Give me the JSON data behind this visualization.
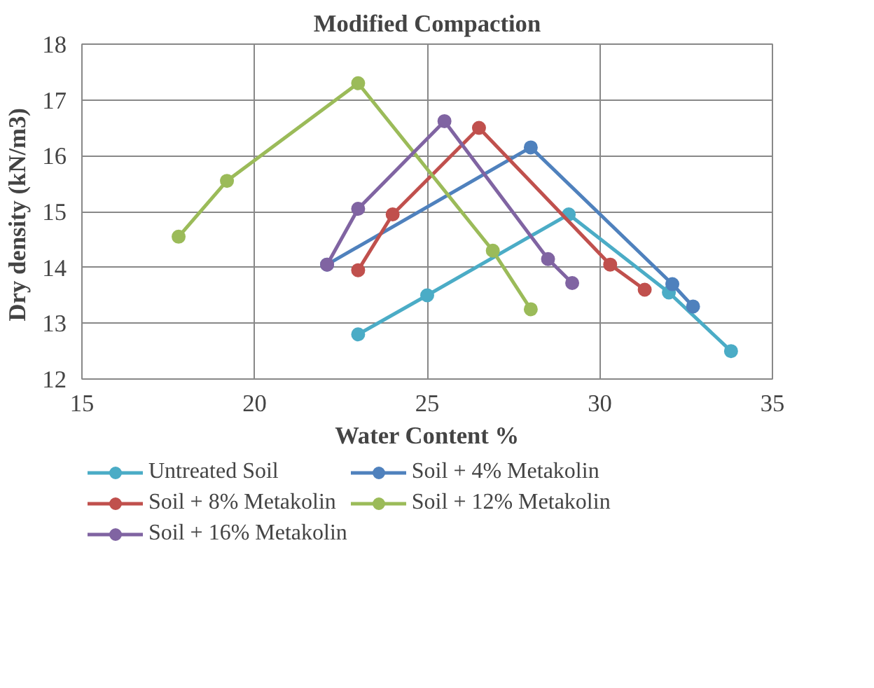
{
  "chart_data": {
    "type": "line",
    "title": "Modified Compaction",
    "xlabel": "Water Content %",
    "ylabel": "Dry density  (kN/m3)",
    "xlim": [
      15,
      35
    ],
    "xticks": [
      15,
      20,
      25,
      30,
      35
    ],
    "ylim": [
      12,
      18
    ],
    "yticks": [
      12,
      13,
      14,
      15,
      16,
      17,
      18
    ],
    "grid": true,
    "legend": "bottom",
    "marker": "circle",
    "line_style": "solid",
    "series": [
      {
        "name": "Untreated Soil",
        "color": "#4bacc6",
        "x": [
          23,
          25,
          29.1,
          32,
          33.8
        ],
        "values": [
          12.8,
          13.5,
          14.95,
          13.55,
          12.5
        ]
      },
      {
        "name": "Soil + 4% Metakolin",
        "color": "#4f81bd",
        "x": [
          22.1,
          28,
          32.1,
          32.7
        ],
        "values": [
          14.05,
          16.15,
          13.7,
          13.3
        ]
      },
      {
        "name": "Soil + 8% Metakolin",
        "color": "#c0504d",
        "x": [
          23,
          24,
          26.5,
          30.3,
          31.3
        ],
        "values": [
          13.95,
          14.95,
          16.5,
          14.05,
          13.6
        ]
      },
      {
        "name": "Soil + 12% Metakolin",
        "color": "#9bbb59",
        "x": [
          17.8,
          19.2,
          23,
          26.9,
          28
        ],
        "values": [
          14.55,
          15.55,
          17.3,
          14.3,
          13.25
        ]
      },
      {
        "name": "Soil + 16% Metakolin",
        "color": "#8064a2",
        "x": [
          22.1,
          23,
          25.5,
          28.5,
          29.2
        ],
        "values": [
          14.05,
          15.05,
          16.62,
          14.15,
          13.72
        ]
      }
    ]
  }
}
